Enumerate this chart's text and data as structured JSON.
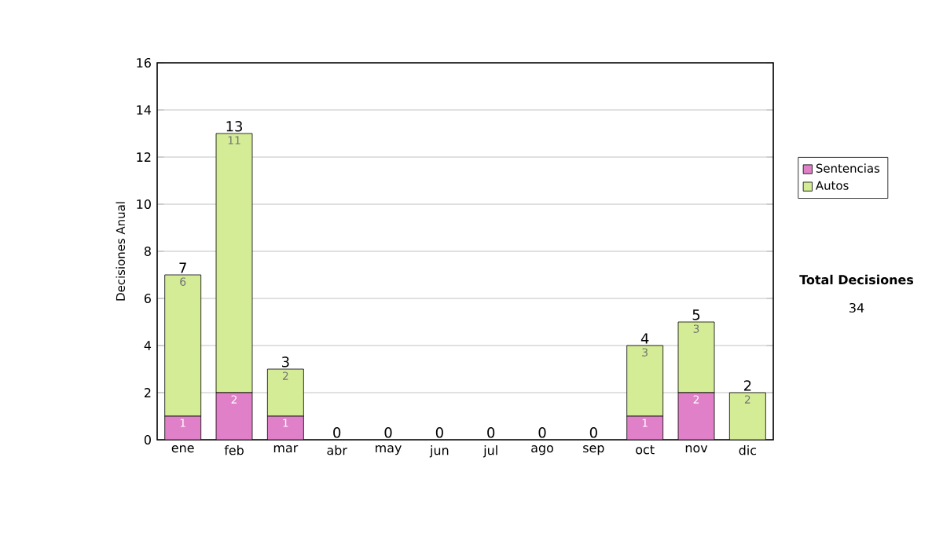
{
  "chart_data": {
    "type": "bar",
    "stacked": true,
    "ylabel": "Decisiones Anual",
    "categories": [
      "ene",
      "feb",
      "mar",
      "abr",
      "may",
      "jun",
      "jul",
      "ago",
      "sep",
      "oct",
      "nov",
      "dic"
    ],
    "series": [
      {
        "name": "Sentencias",
        "color": "#df80c8",
        "values": [
          1,
          2,
          1,
          0,
          0,
          0,
          0,
          0,
          0,
          1,
          2,
          0
        ],
        "value_labels": [
          "1",
          "2",
          "1",
          null,
          null,
          null,
          null,
          null,
          null,
          "1",
          "2",
          null
        ]
      },
      {
        "name": "Autos",
        "color": "#d4ec96",
        "values": [
          6,
          11,
          2,
          0,
          0,
          0,
          0,
          0,
          0,
          3,
          3,
          2
        ],
        "value_labels": [
          "6",
          "11",
          "2",
          null,
          null,
          null,
          null,
          null,
          null,
          "3",
          "3",
          "2"
        ]
      }
    ],
    "totals": [
      "7",
      "13",
      "3",
      "0",
      "0",
      "0",
      "0",
      "0",
      "0",
      "4",
      "5",
      "2"
    ],
    "ylim": [
      0,
      16
    ],
    "yticks": [
      0,
      2,
      4,
      6,
      8,
      10,
      12,
      14,
      16
    ],
    "grid": "y",
    "legend": "right",
    "annotations": [
      "Total Decisiones",
      "34"
    ]
  }
}
